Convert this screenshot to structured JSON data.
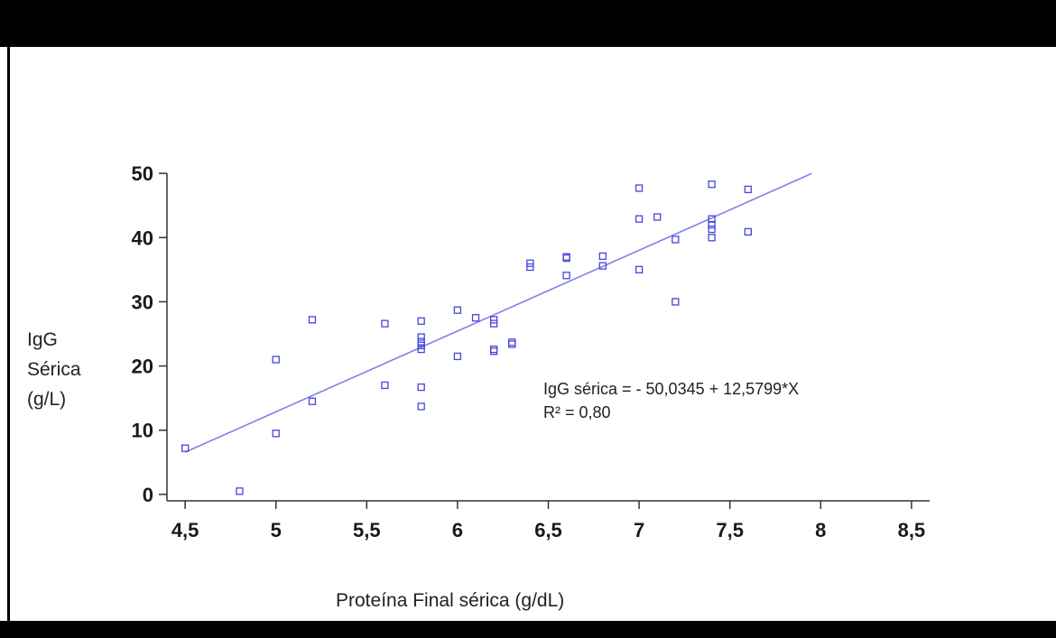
{
  "chart_data": {
    "type": "scatter",
    "title": "",
    "xlabel": "Proteína Final sérica (g/dL)",
    "ylabel_lines": [
      "IgG",
      "Sérica",
      "(g/L)"
    ],
    "xlim": [
      4.4,
      8.6
    ],
    "ylim": [
      -1,
      51
    ],
    "x_ticks": [
      4.5,
      5,
      5.5,
      6,
      6.5,
      7,
      7.5,
      8,
      8.5
    ],
    "x_tick_labels": [
      "4,5",
      "5",
      "5,5",
      "6",
      "6,5",
      "7",
      "7,5",
      "8",
      "8,5"
    ],
    "y_ticks": [
      0,
      10,
      20,
      30,
      40,
      50
    ],
    "y_tick_labels": [
      "0",
      "10",
      "20",
      "30",
      "40",
      "50"
    ],
    "grid": false,
    "marker_color": "#4646d8",
    "line_color": "#8080e8",
    "points": [
      [
        4.5,
        7.2
      ],
      [
        4.8,
        0.5
      ],
      [
        5.0,
        21.0
      ],
      [
        5.0,
        9.5
      ],
      [
        5.2,
        27.2
      ],
      [
        5.2,
        14.5
      ],
      [
        5.6,
        26.6
      ],
      [
        5.6,
        17.0
      ],
      [
        5.8,
        27.0
      ],
      [
        5.8,
        24.5
      ],
      [
        5.8,
        23.8
      ],
      [
        5.8,
        23.2
      ],
      [
        5.8,
        22.6
      ],
      [
        5.8,
        16.7
      ],
      [
        5.8,
        13.7
      ],
      [
        6.0,
        28.7
      ],
      [
        6.0,
        21.5
      ],
      [
        6.1,
        27.5
      ],
      [
        6.2,
        27.2
      ],
      [
        6.2,
        26.6
      ],
      [
        6.2,
        22.6
      ],
      [
        6.2,
        22.3
      ],
      [
        6.3,
        23.7
      ],
      [
        6.3,
        23.4
      ],
      [
        6.4,
        36.0
      ],
      [
        6.4,
        35.4
      ],
      [
        6.6,
        37.0
      ],
      [
        6.6,
        36.8
      ],
      [
        6.6,
        34.1
      ],
      [
        6.8,
        37.1
      ],
      [
        6.8,
        35.6
      ],
      [
        7.0,
        47.7
      ],
      [
        7.0,
        42.9
      ],
      [
        7.0,
        35.0
      ],
      [
        7.1,
        43.2
      ],
      [
        7.2,
        39.7
      ],
      [
        7.2,
        30.0
      ],
      [
        7.4,
        48.3
      ],
      [
        7.4,
        42.9
      ],
      [
        7.4,
        42.0
      ],
      [
        7.4,
        41.3
      ],
      [
        7.4,
        40.0
      ],
      [
        7.6,
        47.5
      ],
      [
        7.6,
        40.9
      ]
    ],
    "regression": {
      "intercept": -50.0345,
      "slope": 12.5799,
      "x_range": [
        4.5,
        7.95
      ],
      "equation_label": "IgG sérica = - 50,0345  + 12,5799*X",
      "r2_label": "R² = 0,80"
    }
  }
}
